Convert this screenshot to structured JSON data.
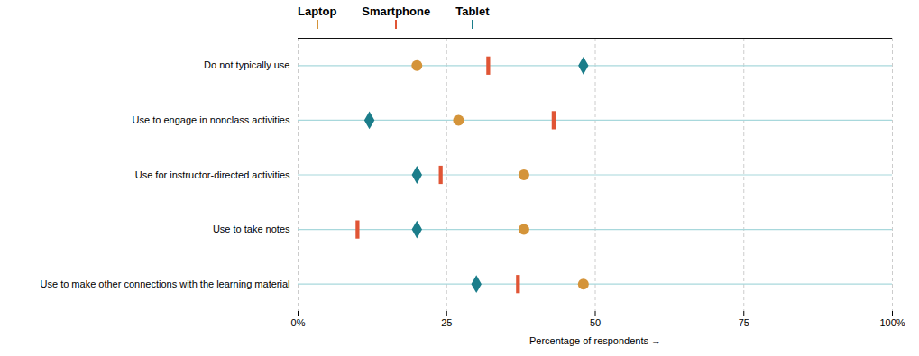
{
  "chart_data": {
    "type": "dot",
    "orientation": "horizontal",
    "xlabel": "Percentage of respondents",
    "categories": [
      "Do not typically use",
      "Use to engage in nonclass activities",
      "Use for instructor-directed activities",
      "Use to take notes",
      "Use to make other connections with the learning material"
    ],
    "series": [
      {
        "name": "Laptop",
        "color": "#D4943A",
        "marker": "circle",
        "values": [
          20,
          27,
          38,
          38,
          48
        ]
      },
      {
        "name": "Smartphone",
        "color": "#E05535",
        "marker": "rectangle",
        "values": [
          32,
          43,
          24,
          10,
          37
        ]
      },
      {
        "name": "Tablet",
        "color": "#1B7D8A",
        "marker": "diamond",
        "values": [
          48,
          12,
          20,
          20,
          30
        ]
      }
    ],
    "xlim": [
      0,
      100
    ],
    "xticks": [
      {
        "value": 0,
        "label": "0%"
      },
      25,
      50,
      75,
      {
        "value": 100,
        "label": "100%"
      }
    ],
    "grid": true,
    "legend": "top"
  }
}
